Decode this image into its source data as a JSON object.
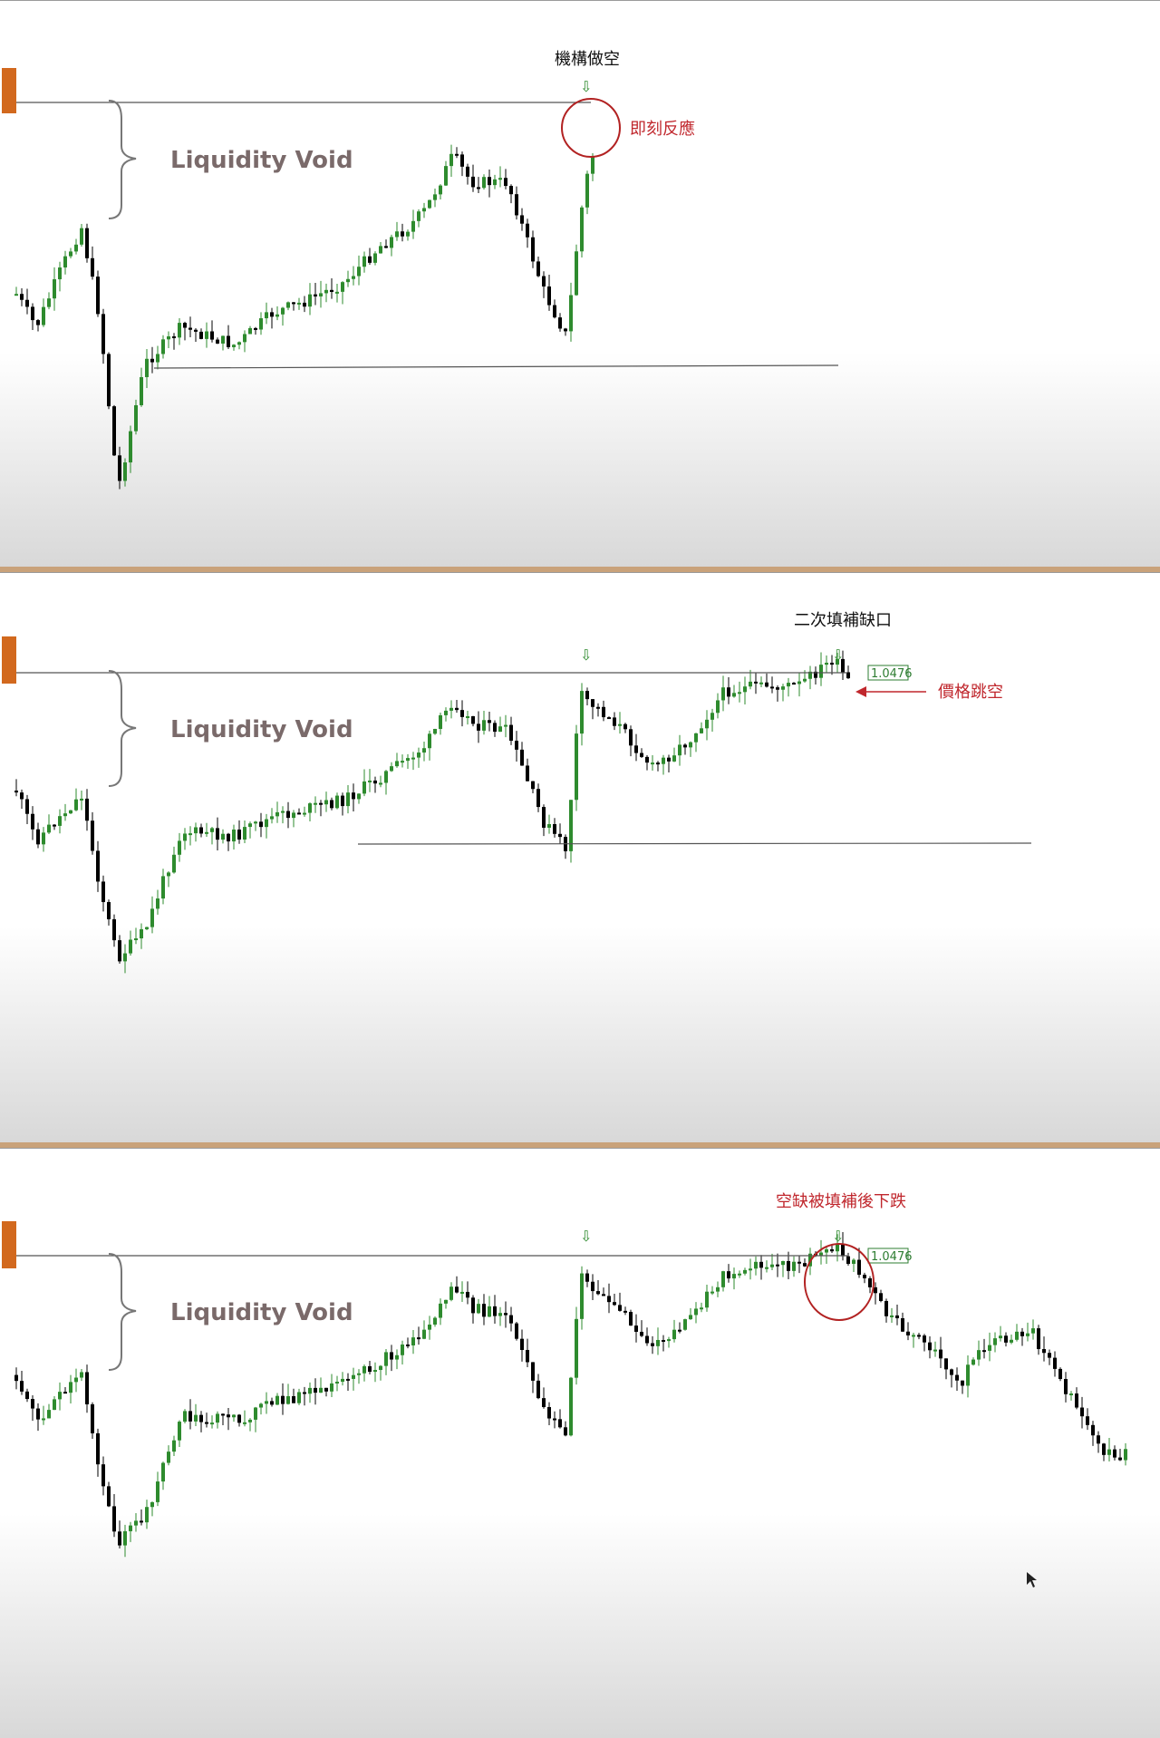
{
  "chart_data": [
    {
      "type": "candlestick",
      "annotations": {
        "void_label": "Liquidity Void",
        "top_label": "機構做空",
        "side_label": "即刻反應"
      },
      "colors": {
        "up": "#2e8b2e",
        "down": "#000000",
        "note_red": "#c0272d",
        "wick_marker": "#d2691e",
        "price_box": "#2e7d32"
      }
    },
    {
      "type": "candlestick",
      "annotations": {
        "void_label": "Liquidity Void",
        "top_label": "二次填補缺口",
        "side_label": "價格跳空",
        "price_tag": "1.0476"
      },
      "colors": {
        "up": "#2e8b2e",
        "down": "#000000",
        "note_red": "#c0272d",
        "wick_marker": "#d2691e",
        "price_box": "#2e7d32"
      }
    },
    {
      "type": "candlestick",
      "annotations": {
        "void_label": "Liquidity Void",
        "top_label": "空缺被填補後下跌",
        "price_tag": "1.0476"
      },
      "colors": {
        "up": "#2e8b2e",
        "down": "#000000",
        "note_red": "#c0272d",
        "wick_marker": "#d2691e",
        "price_box": "#2e7d32"
      }
    }
  ]
}
